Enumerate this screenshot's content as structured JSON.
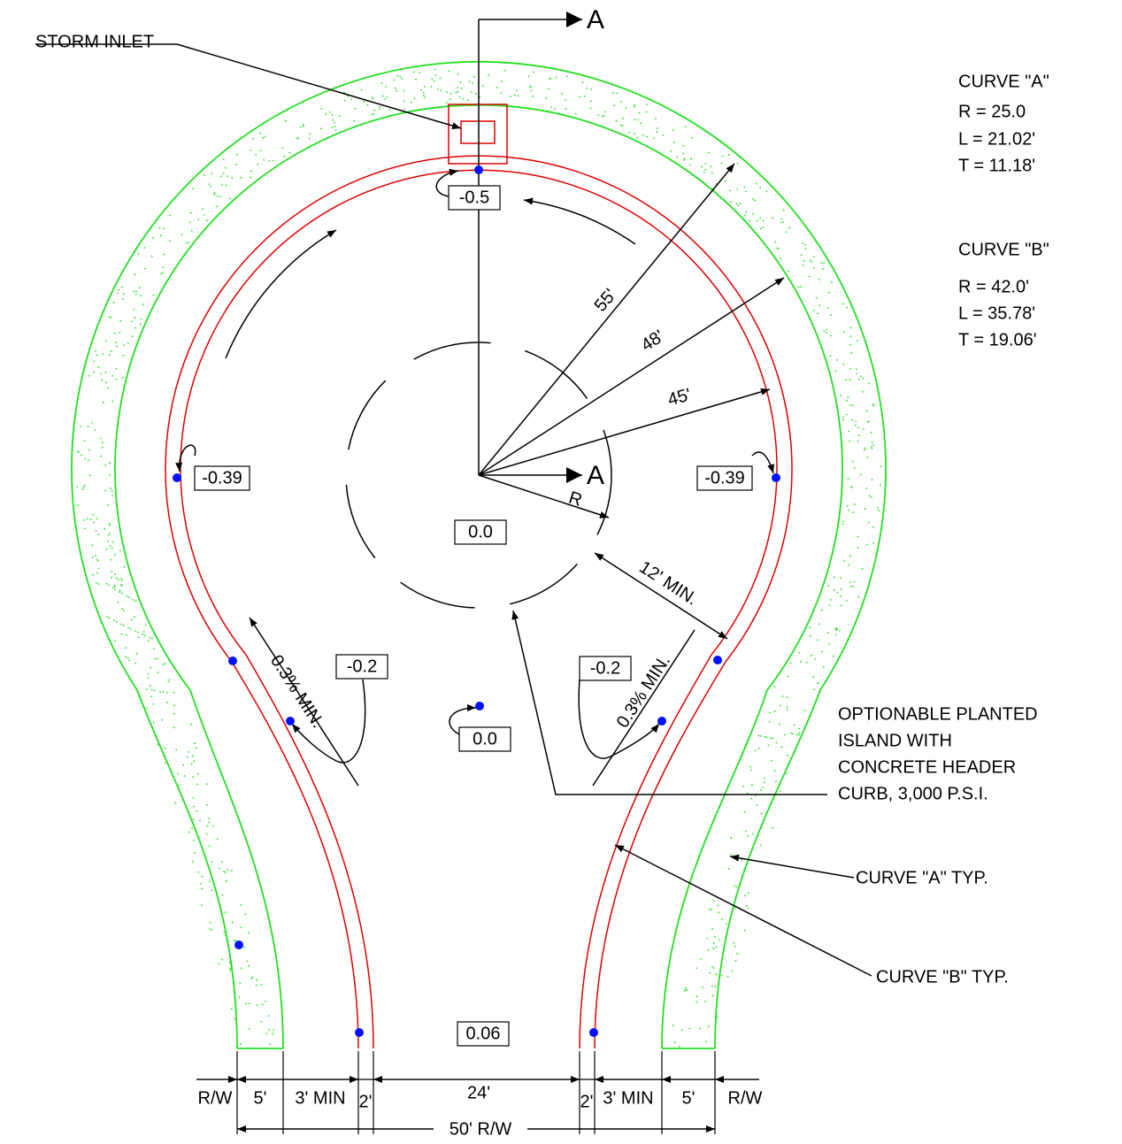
{
  "section_markers": [
    "A",
    "A"
  ],
  "callouts": {
    "storm_inlet": "STORM INLET",
    "island": [
      "OPTIONABLE PLANTED",
      "ISLAND WITH",
      "CONCRETE HEADER",
      "CURB, 3,000 P.S.I."
    ],
    "curve_a_typ": "CURVE \"A\" TYP.",
    "curve_b_typ": "CURVE \"B\" TYP."
  },
  "curves": [
    {
      "title": "CURVE \"A\"",
      "lines": [
        "R = 25.0",
        "L = 21.02'",
        "T = 11.18'"
      ]
    },
    {
      "title": "CURVE \"B\"",
      "lines": [
        "R = 42.0'",
        "L = 35.78'",
        "T = 19.06'"
      ]
    }
  ],
  "radii": [
    "55'",
    "48'",
    "45'",
    "R"
  ],
  "min_clearance": "12' MIN.",
  "slopes": [
    "0.3% MIN.",
    "0.3% MIN."
  ],
  "elevations": [
    "-0.5",
    "-0.39",
    "-0.39",
    "0.0",
    "-0.2",
    "-0.2",
    "0.0",
    "0.06"
  ],
  "dimensions": [
    "R/W",
    "5'",
    "3' MIN",
    "2'",
    "24'",
    "2'",
    "3' MIN",
    "5'",
    "R/W",
    "50' R/W"
  ]
}
